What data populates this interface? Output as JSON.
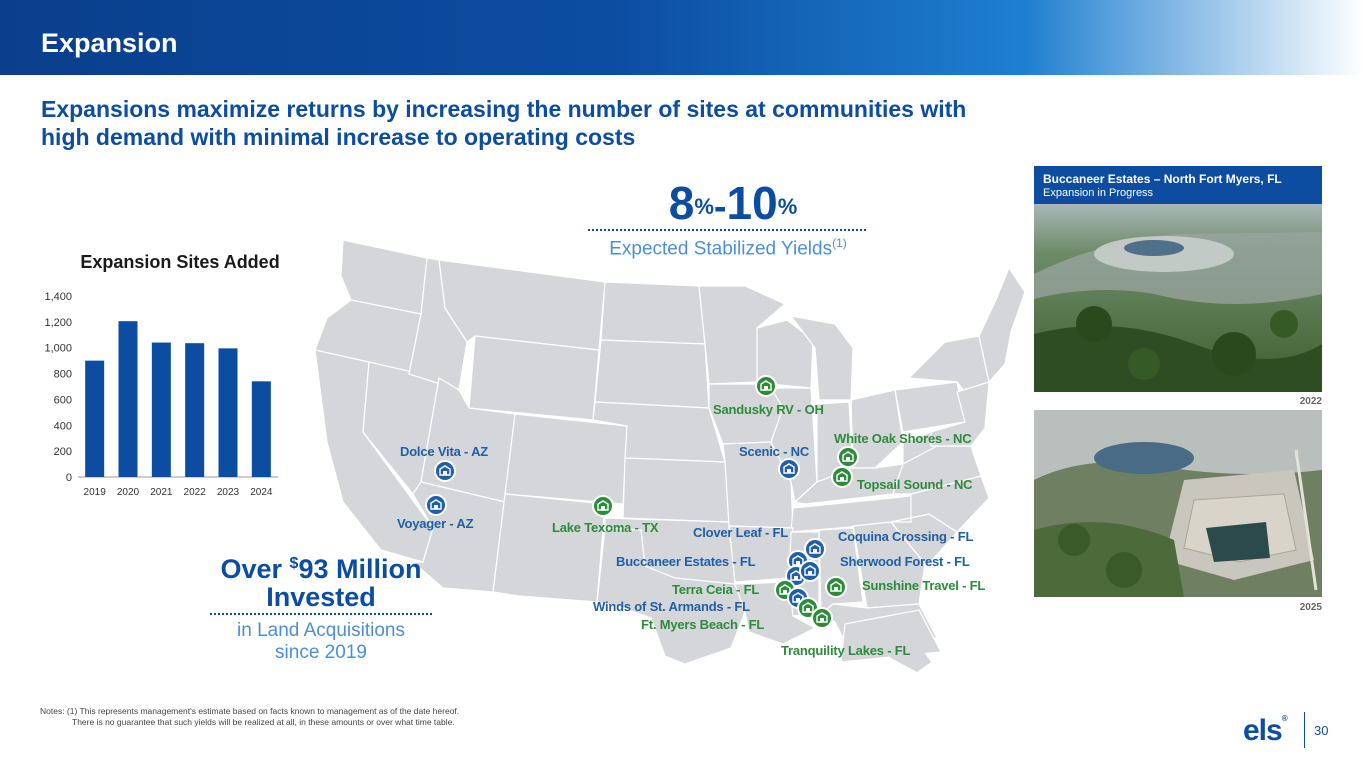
{
  "header": {
    "title": "Expansion"
  },
  "subtitle": "Expansions maximize returns by increasing the number of sites at communities with high demand with minimal increase to operating costs",
  "yield": {
    "low": "8",
    "high": "10",
    "percent": "%",
    "dash": "-",
    "label": "Expected Stabilized Yields",
    "footnote": "(1)"
  },
  "chart_data": {
    "type": "bar",
    "title": "Expansion Sites Added",
    "categories": [
      "2019",
      "2020",
      "2021",
      "2022",
      "2023",
      "2024"
    ],
    "values": [
      900,
      1205,
      1040,
      1035,
      995,
      740
    ],
    "yticks": [
      "0",
      "200",
      "400",
      "600",
      "800",
      "1,000",
      "1,200",
      "1,400"
    ],
    "ylim": [
      0,
      1400
    ],
    "xlabel": "",
    "ylabel": "",
    "grid": false,
    "bar_color": "#0c4da2"
  },
  "investment": {
    "prefix": "Over ",
    "currency": "$",
    "amount": "93 Million",
    "line2": "Invested",
    "sub1": "in Land Acquisitions",
    "sub2": "since 2019"
  },
  "map": {
    "base_color": "#d4d6d9",
    "label_green": "#2e8b3c",
    "label_blue": "#1f5fa8",
    "locations": [
      {
        "name": "Sandusky RV - OH",
        "icon": "rv-park-icon",
        "color": "green"
      },
      {
        "name": "Dolce Vita - AZ",
        "icon": "manufactured-home-icon",
        "color": "blue"
      },
      {
        "name": "Voyager - AZ",
        "icon": "manufactured-home-icon",
        "color": "blue"
      },
      {
        "name": "Lake Texoma - TX",
        "icon": "rv-park-icon",
        "color": "green"
      },
      {
        "name": "Scenic - NC",
        "icon": "manufactured-home-icon",
        "color": "blue"
      },
      {
        "name": "White Oak Shores - NC",
        "icon": "rv-park-icon",
        "color": "green"
      },
      {
        "name": "Topsail Sound - NC",
        "icon": "rv-park-icon",
        "color": "green"
      },
      {
        "name": "Clover Leaf - FL",
        "icon": "manufactured-home-icon",
        "color": "blue"
      },
      {
        "name": "Coquina Crossing - FL",
        "icon": "manufactured-home-icon",
        "color": "blue"
      },
      {
        "name": "Buccaneer Estates - FL",
        "icon": "manufactured-home-icon",
        "color": "blue"
      },
      {
        "name": "Sherwood Forest - FL",
        "icon": "manufactured-home-icon",
        "color": "blue"
      },
      {
        "name": "Terra Ceia - FL",
        "icon": "rv-park-icon",
        "color": "green"
      },
      {
        "name": "Sunshine Travel - FL",
        "icon": "rv-park-icon",
        "color": "green"
      },
      {
        "name": "Winds of St. Armands - FL",
        "icon": "manufactured-home-icon",
        "color": "blue"
      },
      {
        "name": "Ft. Myers Beach - FL",
        "icon": "rv-park-icon",
        "color": "green"
      },
      {
        "name": "Tranquility Lakes - FL",
        "icon": "rv-park-icon",
        "color": "green"
      }
    ]
  },
  "photos": {
    "title": "Buccaneer Estates – North Fort Myers, FL",
    "subtitle": "Expansion in Progress",
    "year1": "2022",
    "year2": "2025"
  },
  "notes": {
    "line1": "Notes: (1) This represents management's estimate based on facts known to management as of the date hereof.",
    "line2": "There is no guarantee that such yields will be realized at all, in these amounts or over what time table."
  },
  "logo": {
    "text": "els",
    "reg": "®"
  },
  "page_number": "30"
}
